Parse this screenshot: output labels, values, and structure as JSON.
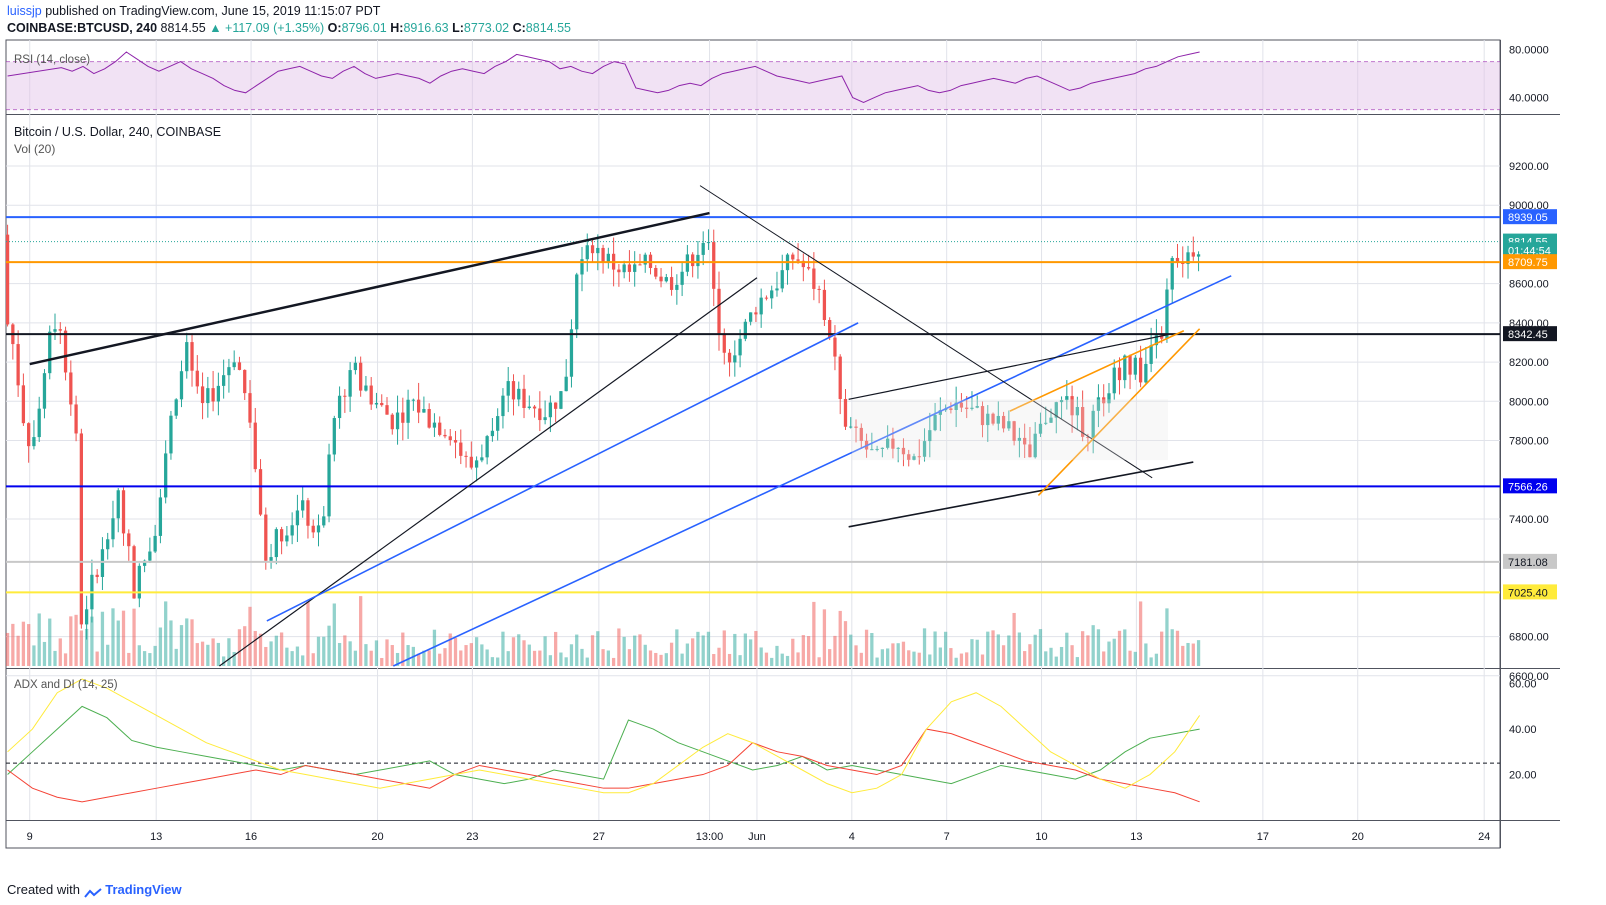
{
  "header": {
    "user": "luissjp",
    "published": "published on TradingView.com, June 15, 2019 11:15:07 PDT",
    "symbol": "COINBASE:BTCUSD, 240",
    "last": "8814.55",
    "change": "▲ +117.09 (+1.35%)",
    "o_label": "O:",
    "o_value": "8796.01",
    "h_label": "H:",
    "h_value": "8916.63",
    "l_label": "L:",
    "l_value": "8773.02",
    "c_label": "C:",
    "c_value": "8814.55"
  },
  "footer": {
    "created_with": "Created with",
    "brand": "TradingView"
  },
  "colors": {
    "up": "#26a69a",
    "down": "#ef5350",
    "grid": "#e1e3ea",
    "rsi": "#8e24aa",
    "blue_line": "#2962ff",
    "orange_line": "#ff9800",
    "yellow_line": "#ffeb3b",
    "black_line": "#131722"
  },
  "chart_data": [
    {
      "type": "line",
      "panel": "rsi",
      "title": "RSI (14, close)",
      "yticks": [
        "80.0000",
        "40.0000"
      ],
      "ylim": [
        28,
        88
      ],
      "band": [
        30,
        70
      ],
      "values": [
        65,
        62,
        66,
        60,
        64,
        70,
        78,
        72,
        66,
        62,
        66,
        70,
        64,
        60,
        56,
        50,
        46,
        44,
        50,
        56,
        62,
        64,
        66,
        62,
        58,
        56,
        62,
        66,
        60,
        56,
        58,
        60,
        58,
        56,
        52,
        58,
        62,
        64,
        62,
        60,
        66,
        70,
        76,
        74,
        72,
        70,
        64,
        66,
        62,
        60,
        66,
        70,
        68,
        48,
        46,
        44,
        46,
        50,
        52,
        50,
        56,
        60,
        62,
        64,
        66,
        62,
        58,
        56,
        54,
        52,
        54,
        56,
        58,
        40,
        36,
        40,
        44,
        46,
        48,
        50,
        46,
        44,
        46,
        50,
        52,
        54,
        56,
        54,
        52,
        56,
        58,
        54,
        50,
        46,
        48,
        52,
        54,
        56,
        58,
        60,
        64,
        66,
        70,
        74,
        76,
        78
      ]
    },
    {
      "type": "candlestick",
      "panel": "price",
      "title": "Bitcoin / U.S. Dollar, 240, COINBASE",
      "volume_label": "Vol (20)",
      "ylim": [
        6650,
        9450
      ],
      "yticks": [
        "9200.00",
        "9000.00",
        "8600.00",
        "8400.00",
        "8200.00",
        "8000.00",
        "7800.00",
        "7400.00",
        "6800.00",
        "6600.00"
      ],
      "price_labels": [
        {
          "text": "8939.05",
          "value": 8939.05,
          "color": "#2962ff"
        },
        {
          "text": "8814.55",
          "value": 8814.55,
          "color": "#26a69a"
        },
        {
          "text": "01:44:54",
          "value": 8770,
          "color": "#26a69a"
        },
        {
          "text": "8709.75",
          "value": 8709.75,
          "color": "#ff9800"
        },
        {
          "text": "8342.45",
          "value": 8342.45,
          "color": "#131722"
        },
        {
          "text": "7566.26",
          "value": 7566.26,
          "color": "#0000ee"
        },
        {
          "text": "7181.08",
          "value": 7181.08,
          "color": "#c8c8c8"
        },
        {
          "text": "7025.40",
          "value": 7025.4,
          "color": "#ffeb3b"
        }
      ],
      "horizontal_levels": [
        {
          "value": 8939.05,
          "color": "#2962ff"
        },
        {
          "value": 8709.75,
          "color": "#ff9800"
        },
        {
          "value": 8342.45,
          "color": "#131722"
        },
        {
          "value": 7566.26,
          "color": "#0000ee"
        },
        {
          "value": 7181.08,
          "color": "#c8c8c8"
        },
        {
          "value": 7025.4,
          "color": "#ffeb3b"
        }
      ],
      "x_labels": [
        {
          "text": "9",
          "day": 9
        },
        {
          "text": "13",
          "day": 13
        },
        {
          "text": "16",
          "day": 16
        },
        {
          "text": "20",
          "day": 20
        },
        {
          "text": "23",
          "day": 23
        },
        {
          "text": "27",
          "day": 27
        },
        {
          "text": "13:00",
          "day": 30.5
        },
        {
          "text": "Jun",
          "day": 32
        },
        {
          "text": "4",
          "day": 35
        },
        {
          "text": "7",
          "day": 38
        },
        {
          "text": "10",
          "day": 41
        },
        {
          "text": "13",
          "day": 44
        },
        {
          "text": "17",
          "day": 48
        },
        {
          "text": "20",
          "day": 51
        },
        {
          "text": "24",
          "day": 55
        }
      ],
      "close_path": [
        {
          "day": 10.6,
          "price": 6850
        },
        {
          "day": 11.2,
          "price": 7200
        },
        {
          "day": 11.8,
          "price": 7550
        },
        {
          "day": 12.3,
          "price": 7050
        },
        {
          "day": 12.9,
          "price": 7300
        },
        {
          "day": 13.4,
          "price": 7850
        },
        {
          "day": 13.9,
          "price": 8300
        },
        {
          "day": 14.4,
          "price": 7950
        },
        {
          "day": 15.0,
          "price": 8100
        },
        {
          "day": 15.5,
          "price": 8250
        },
        {
          "day": 16.0,
          "price": 7900
        },
        {
          "day": 16.4,
          "price": 7200
        },
        {
          "day": 17.0,
          "price": 7350
        },
        {
          "day": 17.6,
          "price": 7450
        },
        {
          "day": 18.2,
          "price": 7300
        },
        {
          "day": 18.7,
          "price": 8000
        },
        {
          "day": 19.3,
          "price": 8150
        },
        {
          "day": 19.9,
          "price": 8000
        },
        {
          "day": 20.5,
          "price": 7900
        },
        {
          "day": 21.1,
          "price": 8000
        },
        {
          "day": 21.7,
          "price": 7900
        },
        {
          "day": 22.3,
          "price": 7850
        },
        {
          "day": 22.9,
          "price": 7650
        },
        {
          "day": 23.5,
          "price": 7800
        },
        {
          "day": 24.1,
          "price": 8050
        },
        {
          "day": 24.7,
          "price": 8000
        },
        {
          "day": 25.3,
          "price": 7950
        },
        {
          "day": 25.9,
          "price": 8050
        },
        {
          "day": 26.3,
          "price": 8650
        },
        {
          "day": 26.8,
          "price": 8800
        },
        {
          "day": 27.4,
          "price": 8700
        },
        {
          "day": 28.0,
          "price": 8650
        },
        {
          "day": 28.6,
          "price": 8700
        },
        {
          "day": 29.2,
          "price": 8600
        },
        {
          "day": 29.8,
          "price": 8700
        },
        {
          "day": 30.4,
          "price": 8850
        },
        {
          "day": 30.9,
          "price": 8200
        },
        {
          "day": 31.4,
          "price": 8300
        },
        {
          "day": 32.0,
          "price": 8500
        },
        {
          "day": 32.6,
          "price": 8600
        },
        {
          "day": 33.2,
          "price": 8750
        },
        {
          "day": 33.8,
          "price": 8600
        },
        {
          "day": 34.4,
          "price": 8300
        },
        {
          "day": 34.7,
          "price": 7900
        },
        {
          "day": 35.2,
          "price": 7800
        },
        {
          "day": 35.8,
          "price": 7700
        },
        {
          "day": 36.4,
          "price": 7800
        },
        {
          "day": 37.0,
          "price": 7700
        },
        {
          "day": 37.6,
          "price": 7900
        },
        {
          "day": 38.2,
          "price": 8000
        },
        {
          "day": 38.8,
          "price": 7950
        },
        {
          "day": 39.4,
          "price": 7900
        },
        {
          "day": 40.0,
          "price": 7850
        },
        {
          "day": 40.6,
          "price": 7700
        },
        {
          "day": 41.2,
          "price": 7950
        },
        {
          "day": 41.8,
          "price": 8000
        },
        {
          "day": 42.4,
          "price": 7850
        },
        {
          "day": 43.0,
          "price": 8050
        },
        {
          "day": 43.6,
          "price": 8200
        },
        {
          "day": 44.2,
          "price": 8150
        },
        {
          "day": 44.8,
          "price": 8350
        },
        {
          "day": 45.1,
          "price": 8700
        },
        {
          "day": 45.6,
          "price": 8750
        },
        {
          "day": 46.0,
          "price": 8814
        }
      ]
    },
    {
      "type": "line",
      "panel": "adx",
      "title": "ADX and DI (14, 25)",
      "yticks": [
        "60.00",
        "40.00",
        "20.00"
      ],
      "ylim": [
        0,
        66
      ],
      "threshold": 25,
      "series": [
        {
          "color": "#4caf50",
          "values": [
            20,
            30,
            40,
            50,
            45,
            35,
            32,
            30,
            28,
            26,
            24,
            22,
            24,
            22,
            20,
            22,
            24,
            26,
            20,
            18,
            16,
            18,
            22,
            20,
            18,
            44,
            40,
            34,
            30,
            26,
            22,
            24,
            28,
            22,
            24,
            22,
            20,
            18,
            16,
            20,
            24,
            22,
            20,
            18,
            22,
            30,
            36,
            38,
            40
          ]
        },
        {
          "color": "#f44336",
          "values": [
            22,
            14,
            10,
            8,
            10,
            12,
            14,
            16,
            18,
            20,
            22,
            20,
            24,
            22,
            20,
            18,
            16,
            14,
            20,
            24,
            22,
            20,
            18,
            16,
            14,
            14,
            16,
            18,
            20,
            24,
            34,
            30,
            28,
            24,
            22,
            20,
            24,
            40,
            38,
            34,
            30,
            26,
            24,
            22,
            18,
            16,
            14,
            12,
            8
          ]
        },
        {
          "color": "#ffeb3b",
          "values": [
            30,
            40,
            56,
            62,
            58,
            52,
            46,
            40,
            34,
            30,
            26,
            22,
            20,
            18,
            16,
            14,
            16,
            18,
            20,
            22,
            20,
            18,
            16,
            14,
            12,
            12,
            16,
            24,
            32,
            38,
            34,
            28,
            22,
            16,
            12,
            14,
            20,
            40,
            52,
            56,
            50,
            40,
            30,
            24,
            18,
            14,
            20,
            30,
            46
          ]
        }
      ]
    }
  ]
}
